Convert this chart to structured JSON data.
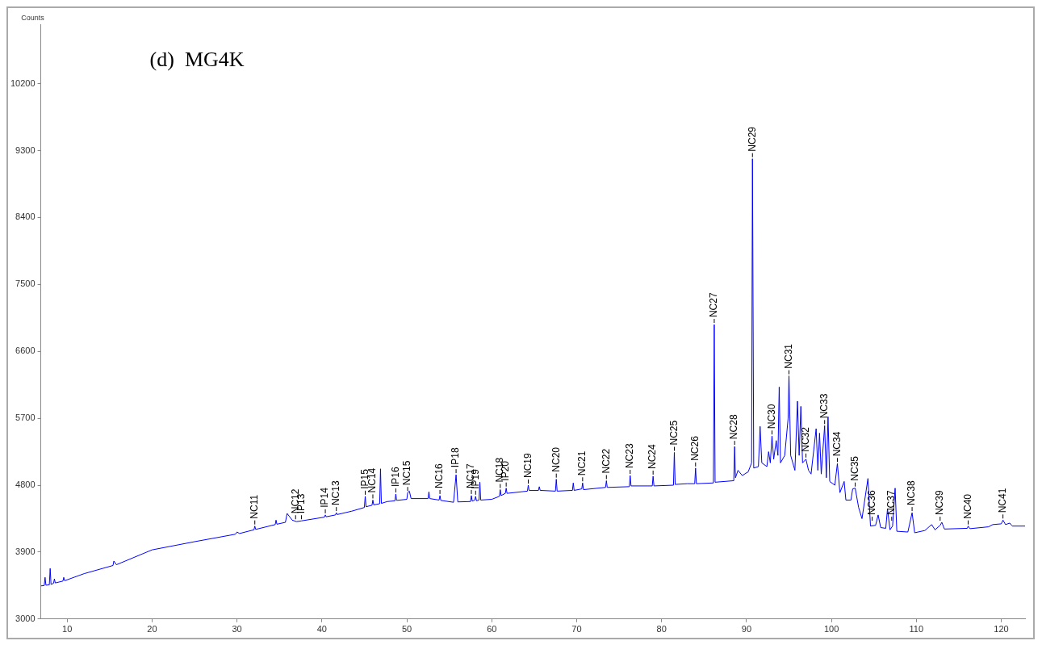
{
  "chart_data": {
    "type": "line",
    "title": "(d)  MG4K",
    "ylabel": "Counts",
    "xlim": [
      6.9,
      122.8
    ],
    "ylim": [
      3000,
      11000
    ],
    "xticks": [
      10,
      20,
      30,
      40,
      50,
      60,
      70,
      80,
      90,
      100,
      110,
      120
    ],
    "yticks": [
      3000,
      3900,
      4800,
      5700,
      6600,
      7500,
      8400,
      9300,
      10200
    ],
    "grid": false,
    "legend": false,
    "marker": "none",
    "line_style": "solid",
    "series": [
      {
        "color": "#0000ff",
        "x": [
          6.9,
          7.3,
          7.4,
          7.5,
          7.9,
          8.0,
          8.1,
          8.4,
          8.5,
          8.6,
          9.5,
          9.6,
          9.7,
          12,
          15.4,
          15.5,
          15.8,
          20,
          25,
          29.8,
          30,
          30.3,
          32,
          32.1,
          32.2,
          34.5,
          34.6,
          34.7,
          35.7,
          35.9,
          36.5,
          37,
          37.6,
          40.3,
          40.4,
          40.5,
          41.6,
          41.7,
          41.8,
          43.5,
          45,
          45.1,
          45.2,
          45.9,
          46.0,
          46.1,
          46.8,
          46.9,
          47.0,
          47.7,
          48.6,
          48.7,
          48.8,
          50.0,
          50.1,
          50.3,
          50.5,
          52.5,
          52.6,
          52.7,
          53.8,
          53.9,
          54,
          55.5,
          55.8,
          56.0,
          57.5,
          57.6,
          57.7,
          58.0,
          58.1,
          58.2,
          58.5,
          58.6,
          58.7,
          60,
          60.9,
          61.0,
          61.1,
          61.6,
          61.7,
          61.8,
          64.2,
          64.3,
          64.4,
          65.5,
          65.6,
          65.7,
          67.5,
          67.6,
          67.7,
          69.5,
          69.6,
          69.7,
          70.6,
          70.7,
          70.8,
          73.4,
          73.5,
          73.6,
          76.2,
          76.3,
          76.4,
          78.9,
          79.0,
          79.1,
          81.4,
          81.5,
          81.6,
          83.0,
          83.9,
          84.0,
          84.1,
          86.1,
          86.2,
          86.3,
          88.5,
          88.6,
          88.7,
          89,
          89.5,
          90.2,
          90.6,
          90.7,
          90.85,
          91.4,
          91.6,
          91.8,
          92.4,
          92.6,
          92.8,
          93.0,
          93.2,
          93.5,
          93.7,
          93.85,
          94.0,
          94.5,
          94.9,
          95.0,
          95.2,
          95.7,
          96.0,
          96.2,
          96.4,
          96.6,
          97.0,
          97.3,
          97.6,
          98.2,
          98.4,
          98.6,
          98.8,
          99.2,
          99.4,
          99.6,
          99.8,
          100.4,
          100.7,
          101.0,
          101.5,
          101.7,
          102.3,
          102.5,
          102.8,
          103.2,
          103.6,
          104.3,
          104.6,
          105.2,
          105.5,
          105.8,
          106.4,
          106.6,
          106.9,
          107.2,
          107.5,
          107.7,
          109.0,
          109.5,
          109.8,
          111,
          111.8,
          112.2,
          112.8,
          113,
          113.3,
          116,
          116.1,
          116.3,
          118.5,
          119,
          120,
          120.2,
          120.5,
          121,
          121.3,
          122.8
        ],
        "values": [
          3445,
          3450,
          3560,
          3455,
          3460,
          3680,
          3465,
          3480,
          3540,
          3485,
          3510,
          3560,
          3515,
          3610,
          3720,
          3780,
          3730,
          3930,
          4040,
          4140,
          4170,
          4150,
          4200,
          4250,
          4205,
          4270,
          4330,
          4275,
          4300,
          4420,
          4330,
          4310,
          4320,
          4370,
          4400,
          4375,
          4400,
          4430,
          4405,
          4450,
          4500,
          4650,
          4510,
          4530,
          4600,
          4535,
          4550,
          5020,
          4555,
          4580,
          4590,
          4680,
          4595,
          4610,
          4700,
          4720,
          4620,
          4620,
          4710,
          4620,
          4600,
          4660,
          4595,
          4570,
          4940,
          4575,
          4580,
          4660,
          4585,
          4600,
          4650,
          4590,
          4600,
          4840,
          4600,
          4610,
          4650,
          4740,
          4660,
          4690,
          4760,
          4690,
          4720,
          4800,
          4730,
          4730,
          4780,
          4730,
          4720,
          4880,
          4720,
          4730,
          4830,
          4730,
          4750,
          4830,
          4740,
          4770,
          4860,
          4770,
          4780,
          4930,
          4790,
          4790,
          4920,
          4790,
          4800,
          5240,
          4810,
          4820,
          4820,
          5030,
          4820,
          4830,
          6960,
          4840,
          4860,
          5320,
          4900,
          5000,
          4930,
          4980,
          5100,
          9190,
          5030,
          5050,
          5590,
          5100,
          5050,
          5250,
          5100,
          5460,
          5150,
          5400,
          5200,
          6120,
          5100,
          5200,
          5700,
          6270,
          5200,
          5000,
          5930,
          5200,
          5860,
          5100,
          5150,
          5000,
          4950,
          5560,
          5000,
          5500,
          4950,
          5600,
          4900,
          5720,
          4850,
          4800,
          5090,
          4700,
          4850,
          4600,
          4600,
          4750,
          4760,
          4500,
          4350,
          4890,
          4250,
          4260,
          4400,
          4230,
          4220,
          4480,
          4200,
          4250,
          4760,
          4180,
          4170,
          4430,
          4160,
          4190,
          4270,
          4200,
          4260,
          4300,
          4210,
          4220,
          4250,
          4215,
          4240,
          4270,
          4280,
          4330,
          4270,
          4290,
          4250,
          4250
        ]
      }
    ],
    "annotations": [
      {
        "text": "NC11",
        "x": 32.1,
        "y": 4250
      },
      {
        "text": "NC12",
        "x": 36.9,
        "y": 4320
      },
      {
        "text": "IP13",
        "x": 37.6,
        "y": 4320
      },
      {
        "text": "IP14",
        "x": 40.4,
        "y": 4400
      },
      {
        "text": "NC13",
        "x": 41.7,
        "y": 4430
      },
      {
        "text": "IP15",
        "x": 45.1,
        "y": 4650
      },
      {
        "text": "NC14",
        "x": 46.0,
        "y": 4600
      },
      {
        "text": "IP16",
        "x": 48.7,
        "y": 4680
      },
      {
        "text": "NC15",
        "x": 50.1,
        "y": 4700
      },
      {
        "text": "NC16",
        "x": 53.9,
        "y": 4660
      },
      {
        "text": "IP18",
        "x": 55.8,
        "y": 4940
      },
      {
        "text": "NC17",
        "x": 57.6,
        "y": 4660
      },
      {
        "text": "IP19",
        "x": 58.1,
        "y": 4650
      },
      {
        "text": "NC18",
        "x": 61.0,
        "y": 4740
      },
      {
        "text": "IP20",
        "x": 61.7,
        "y": 4760
      },
      {
        "text": "NC19",
        "x": 64.3,
        "y": 4800
      },
      {
        "text": "NC20",
        "x": 67.6,
        "y": 4880
      },
      {
        "text": "NC21",
        "x": 70.7,
        "y": 4830
      },
      {
        "text": "NC22",
        "x": 73.5,
        "y": 4860
      },
      {
        "text": "NC23",
        "x": 76.3,
        "y": 4930
      },
      {
        "text": "NC24",
        "x": 79.0,
        "y": 4920
      },
      {
        "text": "NC25",
        "x": 81.5,
        "y": 5240
      },
      {
        "text": "NC26",
        "x": 84.0,
        "y": 5030
      },
      {
        "text": "NC27",
        "x": 86.2,
        "y": 6960
      },
      {
        "text": "NC28",
        "x": 88.6,
        "y": 5320
      },
      {
        "text": "NC29",
        "x": 90.7,
        "y": 9190
      },
      {
        "text": "NC30",
        "x": 93.0,
        "y": 5460
      },
      {
        "text": "NC31",
        "x": 95.0,
        "y": 6270
      },
      {
        "text": "NC32",
        "x": 97.0,
        "y": 5150
      },
      {
        "text": "NC33",
        "x": 99.2,
        "y": 5600
      },
      {
        "text": "NC34",
        "x": 100.7,
        "y": 5090
      },
      {
        "text": "NC35",
        "x": 102.8,
        "y": 4760
      },
      {
        "text": "NC36",
        "x": 104.8,
        "y": 4300
      },
      {
        "text": "NC37",
        "x": 107.1,
        "y": 4300
      },
      {
        "text": "NC38",
        "x": 109.5,
        "y": 4430
      },
      {
        "text": "NC39",
        "x": 112.8,
        "y": 4300
      },
      {
        "text": "NC40",
        "x": 116.1,
        "y": 4250
      },
      {
        "text": "NC41",
        "x": 120.2,
        "y": 4330
      }
    ]
  }
}
